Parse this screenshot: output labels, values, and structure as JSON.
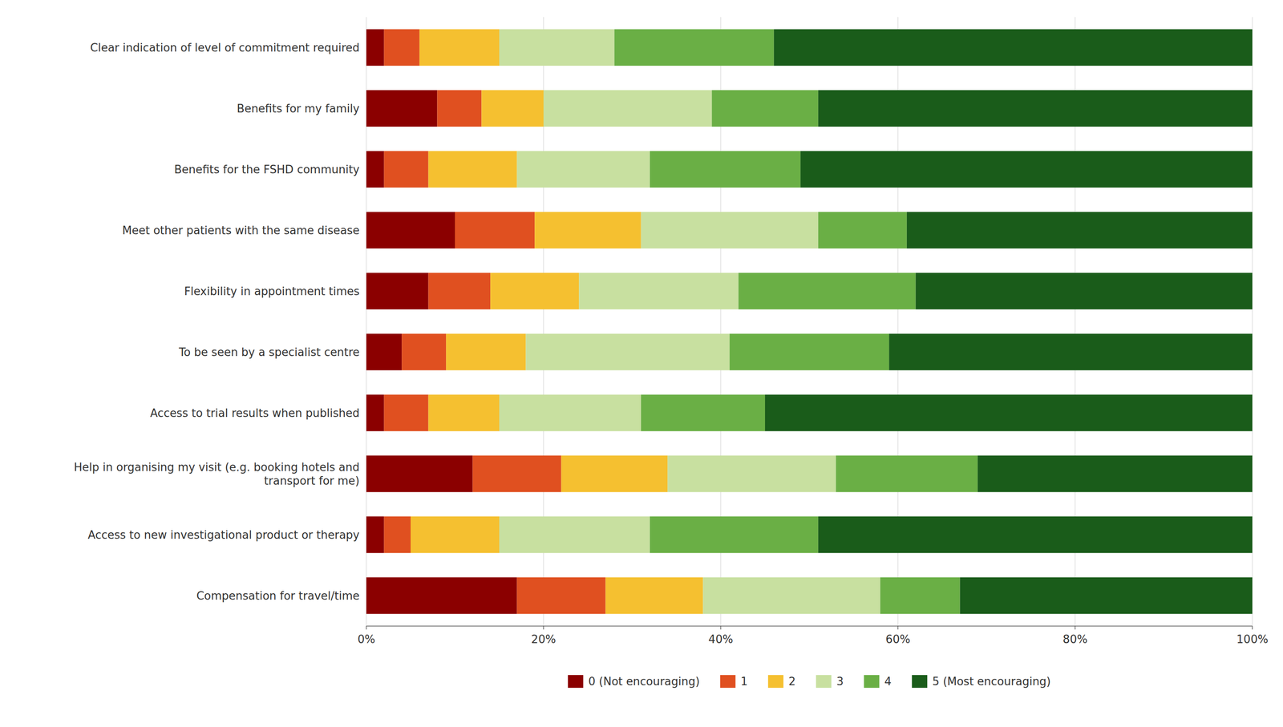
{
  "chart_data": {
    "type": "bar",
    "orientation": "horizontal",
    "stacked": true,
    "grid": true,
    "legend": "bottom",
    "categories": [
      "Clear indication of level of commitment required",
      "Benefits for my family",
      "Benefits for the FSHD community",
      "Meet other patients with the same disease",
      "Flexibility in appointment times",
      "To be seen by a specialist centre",
      "Access to trial results when published",
      "Help in organising my visit (e.g. booking hotels and\ntransport for me)",
      "Access to new investigational product or therapy",
      "Compensation for travel/time"
    ],
    "series": [
      {
        "name": "0 (Not encouraging)",
        "color": "#8B0000",
        "values": [
          2,
          8,
          2,
          10,
          7,
          4,
          2,
          12,
          2,
          17
        ]
      },
      {
        "name": "1",
        "color": "#E05020",
        "values": [
          4,
          5,
          5,
          9,
          7,
          5,
          5,
          10,
          3,
          10
        ]
      },
      {
        "name": "2",
        "color": "#F5C030",
        "values": [
          9,
          7,
          10,
          12,
          10,
          9,
          8,
          12,
          10,
          11
        ]
      },
      {
        "name": "3",
        "color": "#C8E0A0",
        "values": [
          13,
          19,
          15,
          20,
          18,
          23,
          16,
          19,
          17,
          20
        ]
      },
      {
        "name": "4",
        "color": "#6AAF45",
        "values": [
          18,
          12,
          17,
          10,
          20,
          18,
          14,
          16,
          19,
          9
        ]
      },
      {
        "name": "5 (Most encouraging)",
        "color": "#1A5C1A",
        "values": [
          54,
          49,
          51,
          39,
          38,
          41,
          55,
          31,
          49,
          33
        ]
      }
    ],
    "xlim": [
      0,
      100
    ],
    "xticks": [
      {
        "value": 0,
        "label": "0%"
      },
      {
        "value": 20,
        "label": "20%"
      },
      {
        "value": 40,
        "label": "40%"
      },
      {
        "value": 60,
        "label": "60%"
      },
      {
        "value": 80,
        "label": "80%"
      },
      {
        "value": 100,
        "label": "100%"
      }
    ]
  }
}
